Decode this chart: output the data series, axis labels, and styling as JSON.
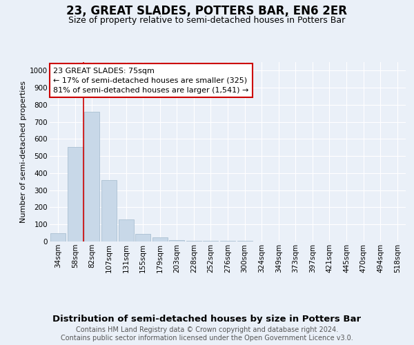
{
  "title": "23, GREAT SLADES, POTTERS BAR, EN6 2ER",
  "subtitle": "Size of property relative to semi-detached houses in Potters Bar",
  "xlabel": "Distribution of semi-detached houses by size in Potters Bar",
  "ylabel": "Number of semi-detached properties",
  "categories": [
    "34sqm",
    "58sqm",
    "82sqm",
    "107sqm",
    "131sqm",
    "155sqm",
    "179sqm",
    "203sqm",
    "228sqm",
    "252sqm",
    "276sqm",
    "300sqm",
    "324sqm",
    "349sqm",
    "373sqm",
    "397sqm",
    "421sqm",
    "445sqm",
    "470sqm",
    "494sqm",
    "518sqm"
  ],
  "values": [
    50,
    555,
    760,
    360,
    130,
    45,
    25,
    10,
    5,
    5,
    5,
    5,
    0,
    0,
    0,
    0,
    0,
    0,
    0,
    0,
    0
  ],
  "bar_color": "#c8d8e8",
  "bar_edge_color": "#a0b8cc",
  "annotation_box_text": "23 GREAT SLADES: 75sqm\n← 17% of semi-detached houses are smaller (325)\n81% of semi-detached houses are larger (1,541) →",
  "annotation_box_facecolor": "#ffffff",
  "annotation_box_edgecolor": "#cc0000",
  "red_line_x": 1.5,
  "ylim": [
    0,
    1050
  ],
  "yticks": [
    0,
    100,
    200,
    300,
    400,
    500,
    600,
    700,
    800,
    900,
    1000
  ],
  "bg_color": "#eaf0f8",
  "plot_bg_color": "#eaf0f8",
  "grid_color": "#ffffff",
  "footer_text": "Contains HM Land Registry data © Crown copyright and database right 2024.\nContains public sector information licensed under the Open Government Licence v3.0.",
  "title_fontsize": 12,
  "subtitle_fontsize": 9,
  "xlabel_fontsize": 9.5,
  "ylabel_fontsize": 8,
  "tick_fontsize": 7.5,
  "annotation_fontsize": 8,
  "footer_fontsize": 7
}
